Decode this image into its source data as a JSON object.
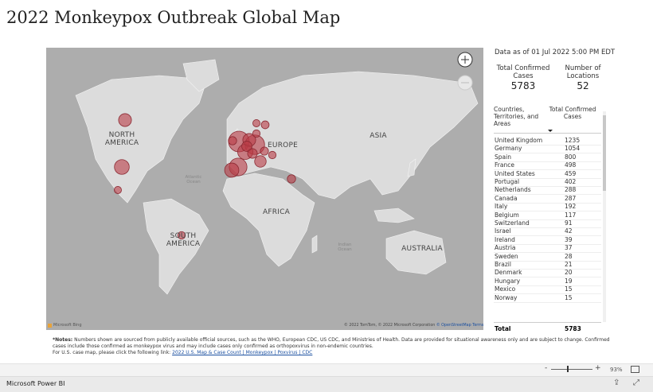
{
  "header": {
    "title": "2022 Monkeypox Outbreak Global Map"
  },
  "map": {
    "labels": [
      "NORTH AMERICA",
      "EUROPE",
      "ASIA",
      "AFRICA",
      "SOUTH AMERICA",
      "AUSTRALIA"
    ],
    "oceans": [
      "Atlantic Ocean",
      "Indian Ocean"
    ],
    "logo": "Microsoft Bing",
    "attribution": "© 2022 TomTom, © 2022 Microsoft Corporation",
    "attribution_link": "© OpenStreetMap",
    "terms": "Terms"
  },
  "summary": {
    "as_of": "Data as of 01 Jul 2022 5:00 PM EDT",
    "cases_label": "Total Confirmed Cases",
    "cases": 5783,
    "locations_label": "Number of Locations",
    "locations": 52
  },
  "table": {
    "columns": [
      "Countries, Territories, and Areas",
      "Total Confirmed Cases"
    ],
    "rows": [
      [
        "United Kingdom",
        1235
      ],
      [
        "Germany",
        1054
      ],
      [
        "Spain",
        800
      ],
      [
        "France",
        498
      ],
      [
        "United States",
        459
      ],
      [
        "Portugal",
        402
      ],
      [
        "Netherlands",
        288
      ],
      [
        "Canada",
        287
      ],
      [
        "Italy",
        192
      ],
      [
        "Belgium",
        117
      ],
      [
        "Switzerland",
        91
      ],
      [
        "Israel",
        42
      ],
      [
        "Ireland",
        39
      ],
      [
        "Austria",
        37
      ],
      [
        "Sweden",
        28
      ],
      [
        "Brazil",
        21
      ],
      [
        "Denmark",
        20
      ],
      [
        "Hungary",
        19
      ],
      [
        "Mexico",
        15
      ],
      [
        "Norway",
        15
      ]
    ],
    "total_label": "Total",
    "total": 5783
  },
  "notes": {
    "label": "*Notes:",
    "text": "Numbers shown are sourced from publicly available official sources, such as the WHO, European CDC, US CDC, and Ministries of Health. Data are provided for situational awareness only and are subject to change. Confirmed cases include those confirmed as monkeypox virus and may include cases only confirmed as orthopoxvirus in non-endemic countries.",
    "link_intro": "For U.S. case map, please click the following link:",
    "link": "2022 U.S. Map & Case Count | Monkeypox | Poxvirus | CDC"
  },
  "footer": {
    "zoom_out": "-",
    "zoom_in": "+",
    "zoom": "93%",
    "app": "Microsoft Power BI"
  }
}
